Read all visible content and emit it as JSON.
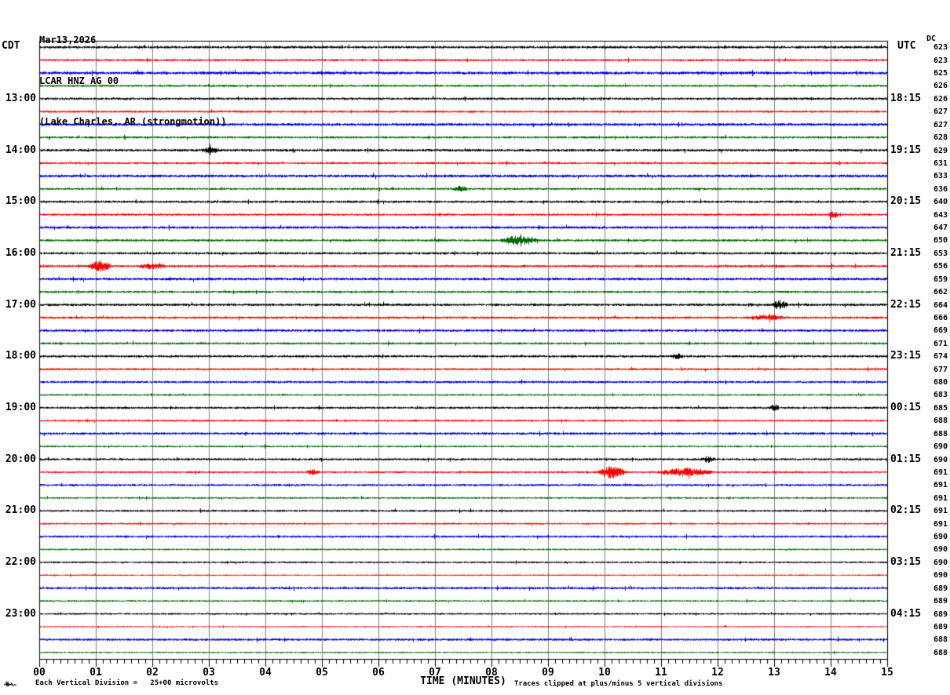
{
  "header": {
    "date": "Mar13,2026",
    "station": "LCAR HNZ AG 00",
    "location": "(Lake Charles, AR (strongmotion))"
  },
  "labels": {
    "left_tz": "CDT",
    "right_tz": "UTC",
    "dc_header": "DC",
    "xlabel": "TIME (MINUTES)"
  },
  "footer": {
    "left": "Each Vertical Division =   25+00 microvolts",
    "right": "Traces clipped at plus/minus 5 vertical divisions"
  },
  "chart_data": {
    "type": "line",
    "subtype": "helicorder-seismogram",
    "title": "LCAR HNZ AG 00 (Lake Charles, AR (strongmotion)) Mar13,2026",
    "x_axis": {
      "label": "TIME (MINUTES)",
      "min": 0,
      "max": 15,
      "tick_labels": [
        "00",
        "01",
        "02",
        "03",
        "04",
        "05",
        "06",
        "07",
        "08",
        "09",
        "10",
        "11",
        "12",
        "13",
        "14",
        "15"
      ],
      "minor_ticks_per_minute": 8
    },
    "row_count": 48,
    "minutes_per_row": 15,
    "trace_color_cycle": [
      "#000000",
      "#ff0000",
      "#0000dd",
      "#006600"
    ],
    "grid_color": "#808080",
    "frame_color": "#000000",
    "left_time_labels": [
      {
        "row": 4,
        "label": "13:00"
      },
      {
        "row": 8,
        "label": "14:00"
      },
      {
        "row": 12,
        "label": "15:00"
      },
      {
        "row": 16,
        "label": "16:00"
      },
      {
        "row": 20,
        "label": "17:00"
      },
      {
        "row": 24,
        "label": "18:00"
      },
      {
        "row": 28,
        "label": "19:00"
      },
      {
        "row": 32,
        "label": "20:00"
      },
      {
        "row": 36,
        "label": "21:00"
      },
      {
        "row": 40,
        "label": "22:00"
      },
      {
        "row": 44,
        "label": "23:00"
      }
    ],
    "right_time_labels": [
      {
        "row": 4,
        "label": "18:15"
      },
      {
        "row": 8,
        "label": "19:15"
      },
      {
        "row": 12,
        "label": "20:15"
      },
      {
        "row": 16,
        "label": "21:15"
      },
      {
        "row": 20,
        "label": "22:15"
      },
      {
        "row": 24,
        "label": "23:15"
      },
      {
        "row": 28,
        "label": "00:15"
      },
      {
        "row": 32,
        "label": "01:15"
      },
      {
        "row": 36,
        "label": "02:15"
      },
      {
        "row": 40,
        "label": "03:15"
      },
      {
        "row": 44,
        "label": "04:15"
      }
    ],
    "dc_offsets": [
      623,
      623,
      625,
      626,
      626,
      627,
      627,
      628,
      629,
      631,
      633,
      636,
      640,
      643,
      647,
      650,
      653,
      656,
      659,
      662,
      664,
      666,
      669,
      671,
      674,
      677,
      680,
      683,
      685,
      688,
      688,
      690,
      690,
      691,
      691,
      691,
      691,
      691,
      690,
      690,
      690,
      690,
      689,
      689,
      689,
      689,
      688,
      688
    ],
    "row_noise_amp": [
      1.4,
      1.2,
      1.6,
      1.2,
      1.3,
      1.2,
      1.5,
      1.2,
      1.4,
      1.2,
      1.5,
      1.2,
      1.3,
      1.2,
      1.4,
      1.3,
      1.3,
      1.3,
      1.5,
      1.2,
      1.4,
      1.3,
      1.4,
      1.2,
      1.3,
      1.2,
      1.3,
      1.0,
      1.2,
      1.1,
      1.3,
      1.0,
      1.2,
      1.1,
      1.2,
      1.0,
      1.1,
      1.0,
      1.2,
      0.9,
      1.0,
      0.8,
      1.3,
      0.9,
      1.0,
      0.7,
      1.3,
      0.8
    ],
    "events": [
      {
        "row": 17,
        "start": 0.85,
        "end": 1.3,
        "amp": 5.0
      },
      {
        "row": 17,
        "start": 1.75,
        "end": 2.25,
        "amp": 2.5
      },
      {
        "row": 15,
        "start": 8.15,
        "end": 8.85,
        "amp": 4.5
      },
      {
        "row": 11,
        "start": 7.3,
        "end": 7.6,
        "amp": 2.5
      },
      {
        "row": 8,
        "start": 2.85,
        "end": 3.2,
        "amp": 2.2
      },
      {
        "row": 13,
        "start": 13.95,
        "end": 14.15,
        "amp": 2.5
      },
      {
        "row": 20,
        "start": 12.95,
        "end": 13.25,
        "amp": 4.0
      },
      {
        "row": 21,
        "start": 12.5,
        "end": 13.2,
        "amp": 2.2
      },
      {
        "row": 24,
        "start": 11.15,
        "end": 11.4,
        "amp": 2.2
      },
      {
        "row": 28,
        "start": 12.9,
        "end": 13.1,
        "amp": 3.2
      },
      {
        "row": 32,
        "start": 11.7,
        "end": 11.95,
        "amp": 2.8
      },
      {
        "row": 33,
        "start": 4.7,
        "end": 4.95,
        "amp": 2.8
      },
      {
        "row": 33,
        "start": 9.85,
        "end": 10.4,
        "amp": 6.0
      },
      {
        "row": 33,
        "start": 10.9,
        "end": 11.95,
        "amp": 3.8
      }
    ],
    "clip_divisions": 5,
    "vertical_division_value": "25+00 microvolts"
  }
}
